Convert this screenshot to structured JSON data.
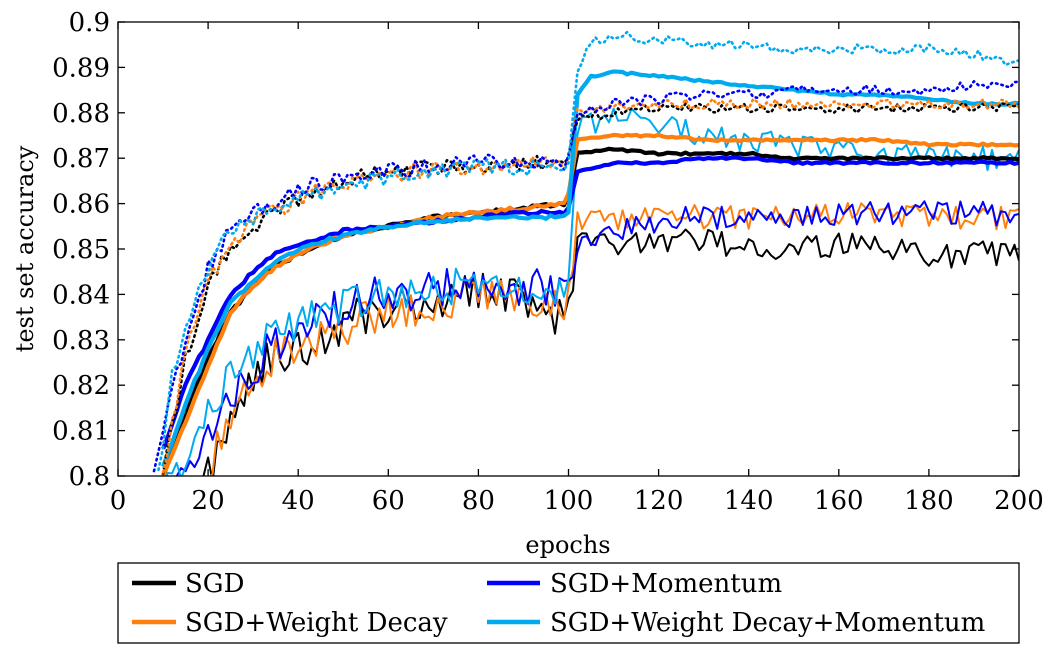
{
  "chart_data": {
    "type": "line",
    "xlabel": "epochs",
    "ylabel": "test set accuracy",
    "xlim": [
      0,
      200
    ],
    "ylim": [
      0.8,
      0.9
    ],
    "x_ticks": [
      "0",
      "20",
      "40",
      "60",
      "80",
      "100",
      "120",
      "140",
      "160",
      "180",
      "200"
    ],
    "y_ticks": [
      "0.8",
      "0.81",
      "0.82",
      "0.83",
      "0.84",
      "0.85",
      "0.86",
      "0.87",
      "0.88",
      "0.89",
      "0.9"
    ],
    "grid": false,
    "legend_placement": "below plot, two columns",
    "styles_note": "thin solid, thick solid and dotted line per method",
    "series": [
      {
        "name": "SGD",
        "color": "#000000",
        "style": "thin",
        "x": [
          10,
          15,
          20,
          25,
          30,
          35,
          40,
          45,
          50,
          60,
          70,
          80,
          90,
          99,
          100,
          102,
          110,
          120,
          130,
          140,
          150,
          160,
          170,
          180,
          190,
          200
        ],
        "y": [
          0.795,
          0.797,
          0.8,
          0.812,
          0.823,
          0.826,
          0.828,
          0.829,
          0.834,
          0.837,
          0.839,
          0.841,
          0.84,
          0.834,
          0.835,
          0.851,
          0.851,
          0.851,
          0.852,
          0.85,
          0.85,
          0.851,
          0.851,
          0.848,
          0.849,
          0.849
        ]
      },
      {
        "name": null,
        "color": "#000000",
        "style": "thick",
        "x": [
          10,
          15,
          20,
          25,
          30,
          35,
          40,
          50,
          60,
          70,
          80,
          90,
          99,
          100,
          102,
          110,
          120,
          130,
          140,
          150,
          160,
          170,
          180,
          190,
          200
        ],
        "y": [
          0.8,
          0.814,
          0.826,
          0.836,
          0.842,
          0.846,
          0.849,
          0.853,
          0.855,
          0.857,
          0.858,
          0.859,
          0.86,
          0.862,
          0.871,
          0.872,
          0.871,
          0.871,
          0.871,
          0.87,
          0.87,
          0.87,
          0.87,
          0.87,
          0.87
        ]
      },
      {
        "name": null,
        "color": "#000000",
        "style": "dotted",
        "x": [
          10,
          15,
          20,
          25,
          30,
          40,
          50,
          60,
          70,
          80,
          90,
          99,
          100,
          102,
          110,
          120,
          130,
          140,
          150,
          160,
          170,
          180,
          190,
          200
        ],
        "y": [
          0.8,
          0.826,
          0.842,
          0.85,
          0.855,
          0.861,
          0.865,
          0.867,
          0.868,
          0.868,
          0.869,
          0.869,
          0.87,
          0.879,
          0.88,
          0.881,
          0.881,
          0.881,
          0.881,
          0.881,
          0.881,
          0.881,
          0.881,
          0.881
        ]
      },
      {
        "name": "SGD+Weight Decay",
        "color": "#ff7f0e",
        "style": "thin",
        "x": [
          12,
          15,
          20,
          25,
          30,
          35,
          40,
          45,
          50,
          60,
          70,
          80,
          90,
          99,
          100,
          102,
          110,
          120,
          130,
          140,
          150,
          160,
          170,
          180,
          190,
          200
        ],
        "y": [
          0.795,
          0.797,
          0.801,
          0.814,
          0.822,
          0.826,
          0.828,
          0.83,
          0.833,
          0.836,
          0.838,
          0.84,
          0.84,
          0.838,
          0.838,
          0.856,
          0.856,
          0.857,
          0.857,
          0.857,
          0.857,
          0.858,
          0.858,
          0.857,
          0.857,
          0.857
        ]
      },
      {
        "name": null,
        "color": "#ff7f0e",
        "style": "thick",
        "x": [
          10,
          15,
          20,
          25,
          30,
          35,
          40,
          50,
          60,
          70,
          80,
          90,
          99,
          100,
          102,
          110,
          120,
          130,
          140,
          150,
          160,
          170,
          180,
          190,
          200
        ],
        "y": [
          0.8,
          0.812,
          0.824,
          0.836,
          0.842,
          0.846,
          0.849,
          0.853,
          0.855,
          0.857,
          0.858,
          0.859,
          0.86,
          0.862,
          0.874,
          0.875,
          0.875,
          0.874,
          0.874,
          0.874,
          0.874,
          0.874,
          0.873,
          0.873,
          0.873
        ]
      },
      {
        "name": null,
        "color": "#ff7f0e",
        "style": "dotted",
        "x": [
          10,
          15,
          20,
          25,
          30,
          40,
          50,
          60,
          70,
          80,
          90,
          99,
          100,
          102,
          110,
          120,
          130,
          140,
          150,
          160,
          170,
          180,
          190,
          200
        ],
        "y": [
          0.8,
          0.828,
          0.843,
          0.851,
          0.856,
          0.861,
          0.865,
          0.866,
          0.868,
          0.868,
          0.869,
          0.869,
          0.87,
          0.88,
          0.881,
          0.882,
          0.882,
          0.882,
          0.882,
          0.882,
          0.882,
          0.882,
          0.882,
          0.882
        ]
      },
      {
        "name": "SGD+Momentum",
        "color": "#0000ff",
        "style": "thin",
        "x": [
          10,
          15,
          20,
          25,
          30,
          35,
          40,
          45,
          50,
          60,
          70,
          80,
          90,
          99,
          100,
          102,
          110,
          120,
          130,
          140,
          150,
          160,
          170,
          180,
          190,
          200
        ],
        "y": [
          0.795,
          0.8,
          0.808,
          0.818,
          0.824,
          0.829,
          0.832,
          0.835,
          0.838,
          0.84,
          0.841,
          0.842,
          0.842,
          0.84,
          0.84,
          0.85,
          0.854,
          0.856,
          0.857,
          0.857,
          0.857,
          0.858,
          0.858,
          0.858,
          0.858,
          0.857
        ]
      },
      {
        "name": null,
        "color": "#0000ff",
        "style": "thick",
        "x": [
          10,
          15,
          20,
          25,
          30,
          35,
          40,
          50,
          60,
          70,
          80,
          90,
          99,
          100,
          102,
          110,
          120,
          130,
          140,
          150,
          160,
          170,
          180,
          190,
          200
        ],
        "y": [
          0.806,
          0.82,
          0.83,
          0.84,
          0.845,
          0.849,
          0.851,
          0.854,
          0.855,
          0.856,
          0.857,
          0.858,
          0.858,
          0.859,
          0.867,
          0.869,
          0.869,
          0.87,
          0.87,
          0.869,
          0.869,
          0.869,
          0.869,
          0.869,
          0.869
        ]
      },
      {
        "name": null,
        "color": "#0000ff",
        "style": "dotted",
        "x": [
          8,
          12,
          15,
          20,
          25,
          30,
          40,
          50,
          60,
          70,
          80,
          90,
          99,
          100,
          102,
          110,
          120,
          130,
          140,
          150,
          160,
          170,
          180,
          190,
          200
        ],
        "y": [
          0.8,
          0.818,
          0.83,
          0.846,
          0.854,
          0.858,
          0.863,
          0.866,
          0.867,
          0.868,
          0.869,
          0.869,
          0.869,
          0.87,
          0.88,
          0.882,
          0.883,
          0.884,
          0.884,
          0.885,
          0.885,
          0.885,
          0.885,
          0.886,
          0.886
        ]
      },
      {
        "name": "SGD+Weight Decay+Momentum",
        "color": "#00aaee",
        "style": "thin",
        "x": [
          10,
          15,
          20,
          25,
          30,
          35,
          40,
          45,
          50,
          60,
          70,
          80,
          90,
          99,
          100,
          102,
          110,
          120,
          130,
          140,
          150,
          160,
          170,
          180,
          190,
          200
        ],
        "y": [
          0.797,
          0.805,
          0.814,
          0.821,
          0.827,
          0.831,
          0.834,
          0.836,
          0.838,
          0.84,
          0.842,
          0.842,
          0.842,
          0.84,
          0.841,
          0.877,
          0.879,
          0.877,
          0.875,
          0.874,
          0.873,
          0.872,
          0.871,
          0.871,
          0.87,
          0.87
        ]
      },
      {
        "name": null,
        "color": "#00aaee",
        "style": "thick",
        "x": [
          10,
          15,
          20,
          25,
          30,
          35,
          40,
          50,
          60,
          70,
          80,
          90,
          99,
          100,
          102,
          105,
          110,
          120,
          130,
          140,
          150,
          160,
          170,
          180,
          190,
          200
        ],
        "y": [
          0.802,
          0.816,
          0.828,
          0.838,
          0.843,
          0.847,
          0.85,
          0.853,
          0.855,
          0.856,
          0.857,
          0.857,
          0.857,
          0.858,
          0.884,
          0.888,
          0.889,
          0.888,
          0.887,
          0.886,
          0.885,
          0.884,
          0.884,
          0.883,
          0.882,
          0.882
        ]
      },
      {
        "name": null,
        "color": "#00aaee",
        "style": "dotted",
        "x": [
          9,
          12,
          15,
          20,
          25,
          30,
          40,
          50,
          60,
          70,
          80,
          90,
          99,
          100,
          102,
          105,
          110,
          120,
          130,
          140,
          150,
          160,
          170,
          180,
          190,
          200
        ],
        "y": [
          0.8,
          0.822,
          0.832,
          0.846,
          0.854,
          0.857,
          0.861,
          0.864,
          0.866,
          0.867,
          0.868,
          0.868,
          0.868,
          0.87,
          0.889,
          0.896,
          0.897,
          0.896,
          0.895,
          0.895,
          0.894,
          0.894,
          0.894,
          0.894,
          0.893,
          0.891
        ]
      }
    ],
    "legend": [
      {
        "label": "SGD",
        "color": "#000000"
      },
      {
        "label": "SGD+Weight Decay",
        "color": "#ff7f0e"
      },
      {
        "label": "SGD+Momentum",
        "color": "#0000ff"
      },
      {
        "label": "SGD+Weight Decay+Momentum",
        "color": "#00aaee"
      }
    ]
  }
}
